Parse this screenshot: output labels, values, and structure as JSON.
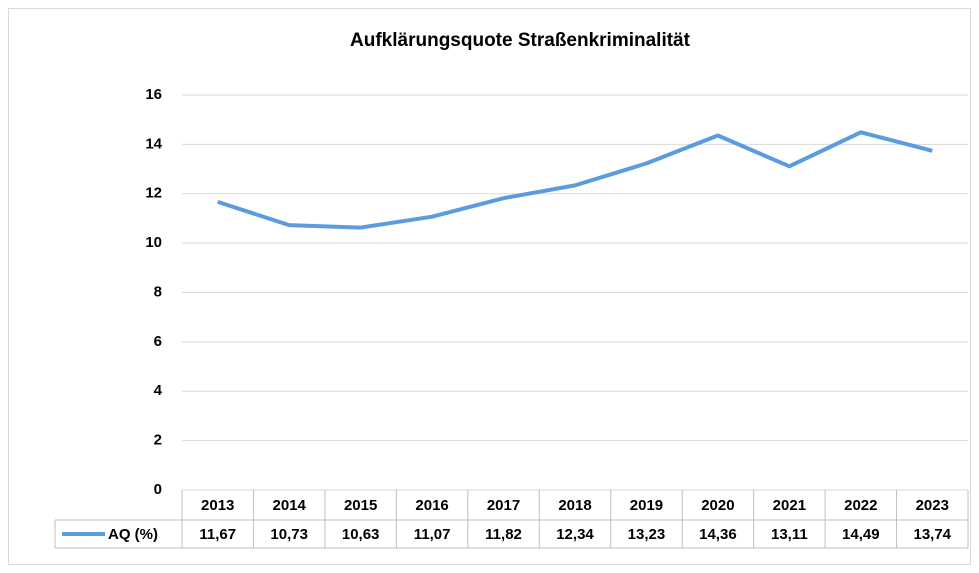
{
  "chart_data": {
    "type": "line",
    "title": "Aufklärungsquote Straßenkriminalität",
    "categories": [
      "2013",
      "2014",
      "2015",
      "2016",
      "2017",
      "2018",
      "2019",
      "2020",
      "2021",
      "2022",
      "2023"
    ],
    "series": [
      {
        "name": "AQ (%)",
        "color": "#5b9bdf",
        "values": [
          11.67,
          10.73,
          10.63,
          11.07,
          11.82,
          12.34,
          13.23,
          14.36,
          13.11,
          14.49,
          13.74
        ],
        "value_labels": [
          "11,67",
          "10,73",
          "10,63",
          "11,07",
          "11,82",
          "12,34",
          "13,23",
          "14,36",
          "13,11",
          "14,49",
          "13,74"
        ]
      }
    ],
    "ylim": [
      0,
      16
    ],
    "yticks": [
      0,
      2,
      4,
      6,
      8,
      10,
      12,
      14,
      16
    ],
    "grid": true
  }
}
